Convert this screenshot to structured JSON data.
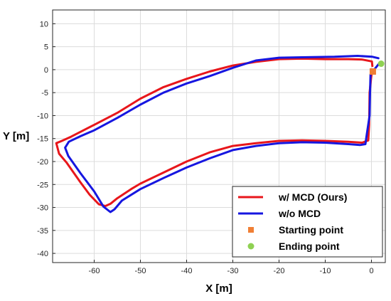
{
  "chart_data": {
    "type": "line",
    "xlabel": "X [m]",
    "ylabel": "Y [m]",
    "xlim": [
      -69,
      3
    ],
    "ylim": [
      -42,
      13
    ],
    "xticks": [
      -60,
      -50,
      -40,
      -30,
      -20,
      -10,
      0
    ],
    "yticks": [
      10,
      5,
      0,
      -5,
      -10,
      -15,
      -20,
      -25,
      -30,
      -35,
      -40
    ],
    "grid": true,
    "legend_position": "bottom-right",
    "series": [
      {
        "name": "w/ MCD (Ours)",
        "color": "#e8161b",
        "x": [
          0.2,
          0.1,
          -2,
          -5,
          -10,
          -15,
          -20,
          -25,
          -30,
          -35,
          -40,
          -45,
          -50,
          -55,
          -60,
          -65,
          -67,
          -68.2,
          -67.6,
          -66,
          -63,
          -61,
          -59,
          -57.6,
          -56.5,
          -55,
          -52,
          -50,
          -45,
          -40,
          -35,
          -30,
          -25,
          -20,
          -15,
          -10,
          -5,
          -2,
          -0.7,
          -0.5,
          -0.4,
          -0.1,
          0.1
        ],
        "y": [
          0.8,
          1.8,
          2.2,
          2.3,
          2.3,
          2.4,
          2.3,
          1.7,
          0.9,
          -0.4,
          -2,
          -3.8,
          -6.3,
          -9.4,
          -12,
          -14.6,
          -15.5,
          -16,
          -18.3,
          -20.2,
          -24.5,
          -27.2,
          -29.3,
          -29.7,
          -29.2,
          -28,
          -26,
          -24.8,
          -22.4,
          -20,
          -18,
          -16.6,
          -16,
          -15.5,
          -15.4,
          -15.5,
          -15.7,
          -15.9,
          -15.4,
          -12,
          -5,
          -2,
          -0.5
        ]
      },
      {
        "name": "w/o MCD",
        "color": "#1616e0",
        "x": [
          1.5,
          0.2,
          -3,
          -8,
          -15,
          -20,
          -25,
          -30,
          -35,
          -40,
          -45,
          -50,
          -55,
          -60,
          -63,
          -65.5,
          -66.3,
          -65.6,
          -63,
          -60,
          -58,
          -56.5,
          -55.6,
          -54,
          -50,
          -45,
          -40,
          -35,
          -30,
          -25,
          -20,
          -15,
          -10,
          -5,
          -2.5,
          -1.3,
          -1,
          -0.4,
          -0.3,
          -0.2,
          1.7
        ],
        "y": [
          2.5,
          2.8,
          3.0,
          2.8,
          2.7,
          2.6,
          2.0,
          0.4,
          -1.4,
          -3,
          -5,
          -7.6,
          -10.5,
          -13.2,
          -14.5,
          -15.7,
          -17,
          -18.8,
          -22.5,
          -26.5,
          -29.8,
          -31,
          -30.4,
          -28.5,
          -26,
          -23.6,
          -21.3,
          -19.3,
          -17.5,
          -16.6,
          -16,
          -15.8,
          -15.9,
          -16.2,
          -16.4,
          -16.2,
          -14,
          -10,
          -5,
          -1,
          1.4
        ]
      }
    ],
    "markers": [
      {
        "name": "Starting point",
        "color": "#f07f35",
        "shape": "square",
        "x": 0.3,
        "y": -0.4
      },
      {
        "name": "Ending point",
        "color": "#8fd153",
        "shape": "circle",
        "x": 2.1,
        "y": 1.3
      }
    ]
  }
}
